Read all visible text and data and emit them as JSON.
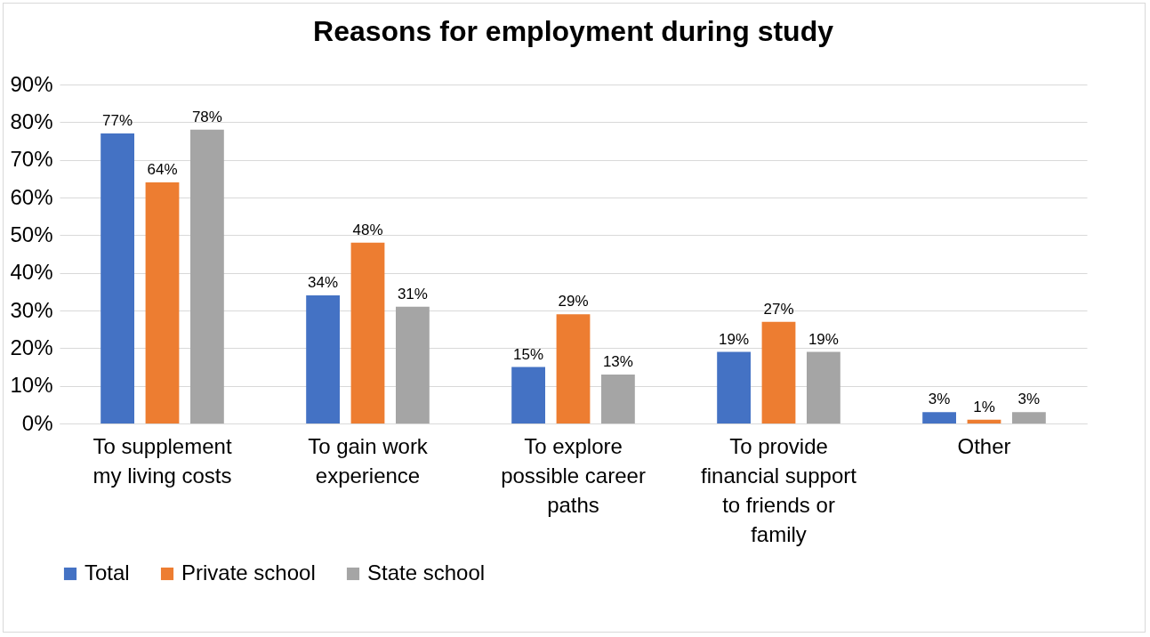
{
  "chart_data": {
    "type": "bar",
    "title": "Reasons for employment during study",
    "categories": [
      "To supplement my living costs",
      "To gain work experience",
      "To explore possible career paths",
      "To provide financial support to friends or family",
      "Other"
    ],
    "series": [
      {
        "name": "Total",
        "color": "#4472c4",
        "values": [
          77,
          34,
          15,
          19,
          3
        ],
        "value_labels": [
          "77%",
          "34%",
          "15%",
          "19%",
          "3%"
        ]
      },
      {
        "name": "Private school",
        "color": "#ed7d31",
        "values": [
          64,
          48,
          29,
          27,
          1
        ],
        "value_labels": [
          "64%",
          "48%",
          "29%",
          "27%",
          "1%"
        ]
      },
      {
        "name": "State school",
        "color": "#a5a5a5",
        "values": [
          78,
          31,
          13,
          19,
          3
        ],
        "value_labels": [
          "78%",
          "31%",
          "13%",
          "19%",
          "3%"
        ]
      }
    ],
    "ylim": [
      0,
      90
    ],
    "yticks": [
      {
        "value": 0,
        "label": "0%"
      },
      {
        "value": 10,
        "label": "10%"
      },
      {
        "value": 20,
        "label": "20%"
      },
      {
        "value": 30,
        "label": "30%"
      },
      {
        "value": 40,
        "label": "40%"
      },
      {
        "value": 50,
        "label": "50%"
      },
      {
        "value": 60,
        "label": "60%"
      },
      {
        "value": 70,
        "label": "70%"
      },
      {
        "value": 80,
        "label": "80%"
      },
      {
        "value": 90,
        "label": "90%"
      }
    ],
    "grid": "y",
    "legend": "bottom"
  }
}
